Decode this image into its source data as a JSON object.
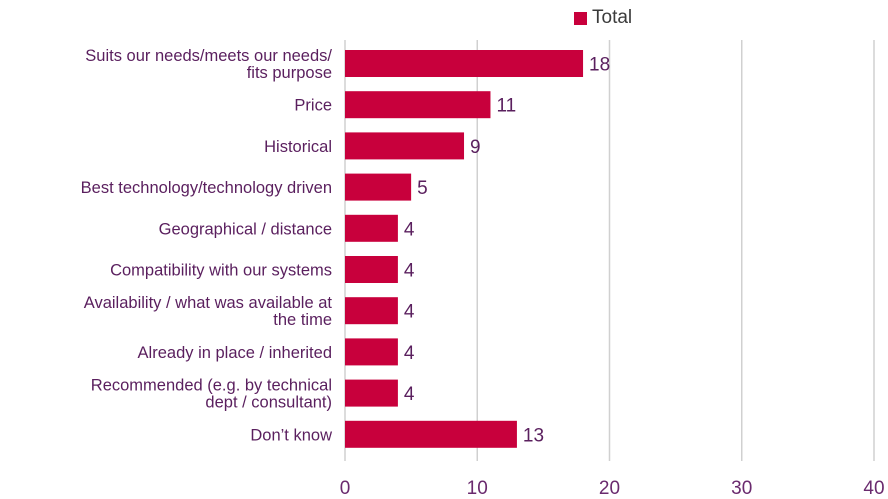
{
  "chart_data": {
    "type": "bar",
    "orientation": "horizontal",
    "categories": [
      "Suits our needs/meets our needs/ fits purpose",
      "Price",
      "Historical",
      "Best technology/technology driven",
      "Geographical / distance",
      "Compatibility with our systems",
      "Availability / what was available at the time",
      "Already in place / inherited",
      "Recommended (e.g. by technical dept / consultant)",
      "Don’t know"
    ],
    "category_lines": [
      [
        "Suits our needs/meets our needs/",
        "fits purpose"
      ],
      [
        "Price"
      ],
      [
        "Historical"
      ],
      [
        "Best technology/technology driven"
      ],
      [
        "Geographical / distance"
      ],
      [
        "Compatibility with our systems"
      ],
      [
        "Availability / what was available at",
        "the time"
      ],
      [
        "Already in place / inherited"
      ],
      [
        "Recommended (e.g. by technical",
        "dept / consultant)"
      ],
      [
        "Don’t know"
      ]
    ],
    "series": [
      {
        "name": "Total",
        "values": [
          18,
          11,
          9,
          5,
          4,
          4,
          4,
          4,
          4,
          13
        ]
      }
    ],
    "xlim": [
      0,
      40
    ],
    "xticks": [
      0,
      10,
      20,
      30,
      40
    ],
    "grid": true,
    "legend_position": "top",
    "data_labels": true,
    "colors": {
      "bar": "#c8003c",
      "category_text": "#5a1f5e",
      "value_text": "#5a1f5e",
      "tick_text": "#6a2a6e",
      "grid": "#d0d0d0"
    }
  }
}
